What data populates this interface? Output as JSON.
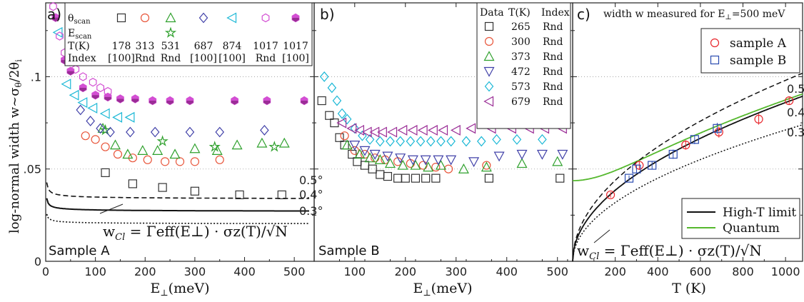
{
  "colors": {
    "c178": "#333333",
    "c313": "#e8553a",
    "c531": "#2ea02c",
    "c687": "#4040a8",
    "c874": "#1cb8d6",
    "c1017": "#d34fd3",
    "c1017f": "#9a2d96",
    "c265": "#333333",
    "c300": "#e8553a",
    "c373": "#2ea02c",
    "c472": "#4040a8",
    "c573": "#1cb8d6",
    "c679": "#9a2d96",
    "sampleA": "#e8242a",
    "sampleB": "#2a4bb0",
    "quantum": "#55b82e",
    "curve": "#111111"
  },
  "shared": {
    "ylabel": "log-normal width w~σθ/2θi",
    "ylabel_main": "log-normal width w~σ",
    "ylabel_sub1": "θ",
    "ylabel_mid": "/2θ",
    "ylabel_sub2": "i"
  },
  "chart_data": [
    {
      "type": "scatter",
      "panel_label": "a)",
      "sample": "Sample A",
      "xlabel": "E⊥(meV)",
      "xlabel_main": "E",
      "xlabel_sub": "⊥",
      "xlabel_unit": "(meV)",
      "xlim": [
        0,
        540
      ],
      "ylim": [
        0,
        0.14
      ],
      "xticks": [
        0,
        100,
        200,
        300,
        400,
        500
      ],
      "yticks": [
        0,
        0.05,
        0.1
      ],
      "ytick_labels": [
        "0",
        ".05",
        ".1"
      ],
      "table": {
        "row_labels": [
          "θscan",
          "Escan",
          "T(K)",
          "Index"
        ],
        "theta": "θ",
        "theta_sub": "scan",
        "e": "E",
        "e_sub": "scan",
        "T_label": "T(K)",
        "index_label": "Index",
        "temps": [
          "178",
          "313",
          "531",
          "687",
          "874",
          "1017",
          "1017"
        ],
        "indices": [
          "[100]",
          "Rnd",
          "Rnd",
          "[100]",
          "[100]",
          "Rnd",
          "[100]"
        ]
      },
      "series": [
        {
          "name": "178 [100]",
          "marker": "square",
          "color_key": "c178",
          "x": [
            120,
            175,
            235,
            300,
            390,
            475
          ],
          "y": [
            0.048,
            0.042,
            0.04,
            0.038,
            0.036,
            0.036
          ]
        },
        {
          "name": "313 Rnd",
          "marker": "circle",
          "color_key": "c313",
          "x": [
            80,
            100,
            120,
            145,
            175,
            205,
            240,
            270,
            300,
            350
          ],
          "y": [
            0.068,
            0.066,
            0.062,
            0.058,
            0.056,
            0.055,
            0.054,
            0.054,
            0.054,
            0.055
          ]
        },
        {
          "name": "531 Rnd θscan",
          "marker": "triangle-up",
          "color_key": "c531",
          "x": [
            115,
            140,
            165,
            195,
            225,
            260,
            300,
            345,
            385,
            435,
            480
          ],
          "y": [
            0.072,
            0.063,
            0.058,
            0.06,
            0.06,
            0.058,
            0.061,
            0.06,
            0.063,
            0.064,
            0.064
          ]
        },
        {
          "name": "531 Rnd Escan",
          "marker": "star",
          "color_key": "c531",
          "x": [
            120,
            235,
            340,
            460
          ],
          "y": [
            0.071,
            0.065,
            0.062,
            0.062
          ]
        },
        {
          "name": "687 [100]",
          "marker": "diamond",
          "color_key": "c687",
          "x": [
            70,
            90,
            110,
            130,
            170,
            220,
            290,
            350,
            440
          ],
          "y": [
            0.082,
            0.076,
            0.072,
            0.07,
            0.07,
            0.07,
            0.07,
            0.07,
            0.071
          ]
        },
        {
          "name": "874 [100]",
          "marker": "triangle-left",
          "color_key": "c874",
          "x": [
            25,
            42,
            58,
            75,
            95,
            120,
            145,
            170
          ],
          "y": [
            0.124,
            0.096,
            0.09,
            0.086,
            0.083,
            0.08,
            0.078,
            0.078
          ]
        },
        {
          "name": "1017 Rnd",
          "marker": "hexagon-open",
          "color_key": "c1017",
          "x": [
            15,
            28,
            38,
            48,
            60,
            75,
            95,
            110,
            125
          ],
          "y": [
            0.138,
            0.122,
            0.113,
            0.108,
            0.104,
            0.1,
            0.097,
            0.094,
            0.092
          ]
        },
        {
          "name": "1017 [100]",
          "marker": "hexagon-half",
          "color_key": "c1017",
          "x": [
            20,
            38,
            50,
            75,
            100,
            125,
            150,
            180,
            215,
            250,
            290,
            380,
            445,
            520
          ],
          "y": [
            0.132,
            0.109,
            0.103,
            0.094,
            0.09,
            0.089,
            0.088,
            0.088,
            0.087,
            0.087,
            0.087,
            0.087,
            0.087,
            0.087
          ]
        }
      ],
      "curves": [
        {
          "name": "0.5°",
          "label": "0.5°",
          "style": "dashed",
          "A": 0.013,
          "C": 0.0335
        },
        {
          "name": "0.4°",
          "label": "0.4°",
          "style": "solid",
          "A": 0.0104,
          "C": 0.0268
        },
        {
          "name": "0.3°",
          "label": "0.3°",
          "style": "dotted",
          "A": 0.0078,
          "C": 0.0201
        }
      ],
      "annotation": {
        "w": "w",
        "sub": "Cl",
        "rest": " = Γeff(E⊥) · σz(T)/√N"
      }
    },
    {
      "type": "scatter",
      "panel_label": "b)",
      "sample": "Sample B",
      "xlabel": "E⊥(meV)",
      "xlabel_main": "E",
      "xlabel_sub": "⊥",
      "xlabel_unit": "(meV)",
      "xlim": [
        20,
        530
      ],
      "ylim": [
        0,
        0.14
      ],
      "xticks": [
        100,
        200,
        300,
        400,
        500
      ],
      "legend_header": [
        "Data",
        "T(K)",
        "Index"
      ],
      "series": [
        {
          "name": "265",
          "index": "Rnd",
          "marker": "square",
          "color_key": "c265",
          "x": [
            35,
            50,
            60,
            70,
            80,
            95,
            105,
            120,
            135,
            150,
            165,
            185,
            200,
            220,
            240,
            260,
            365,
            505
          ],
          "y": [
            0.087,
            0.079,
            0.075,
            0.067,
            0.063,
            0.058,
            0.054,
            0.052,
            0.05,
            0.047,
            0.046,
            0.045,
            0.045,
            0.045,
            0.045,
            0.045,
            0.045,
            0.045
          ]
        },
        {
          "name": "300",
          "index": "Rnd",
          "marker": "circle",
          "color_key": "c300",
          "x": [
            80,
            100,
            120,
            140,
            160,
            185,
            210,
            235,
            260,
            285,
            360
          ],
          "y": [
            0.068,
            0.06,
            0.058,
            0.056,
            0.055,
            0.054,
            0.053,
            0.052,
            0.051,
            0.05,
            0.052
          ]
        },
        {
          "name": "373",
          "index": "Rnd",
          "marker": "triangle-up",
          "color_key": "c373",
          "x": [
            85,
            110,
            130,
            150,
            170,
            195,
            220,
            245,
            270,
            315,
            360,
            430,
            500
          ],
          "y": [
            0.063,
            0.058,
            0.056,
            0.055,
            0.053,
            0.052,
            0.052,
            0.051,
            0.052,
            0.05,
            0.051,
            0.053,
            0.054
          ]
        },
        {
          "name": "472",
          "index": "Rnd",
          "marker": "triangle-down",
          "color_key": "c472",
          "x": [
            100,
            120,
            140,
            165,
            190,
            215,
            240,
            265,
            290,
            335,
            385,
            430,
            470,
            510
          ],
          "y": [
            0.063,
            0.06,
            0.058,
            0.057,
            0.056,
            0.055,
            0.055,
            0.055,
            0.055,
            0.054,
            0.057,
            0.058,
            0.058,
            0.058
          ]
        },
        {
          "name": "573",
          "index": "Rnd",
          "marker": "diamond",
          "color_key": "c573",
          "x": [
            40,
            55,
            65,
            75,
            85,
            100,
            115,
            130,
            150,
            170,
            190,
            210,
            230,
            250,
            270,
            290,
            320,
            350,
            380,
            420,
            470
          ],
          "y": [
            0.1,
            0.094,
            0.087,
            0.08,
            0.077,
            0.072,
            0.068,
            0.066,
            0.065,
            0.065,
            0.065,
            0.065,
            0.065,
            0.065,
            0.065,
            0.065,
            0.065,
            0.065,
            0.066,
            0.066,
            0.066
          ]
        },
        {
          "name": "679",
          "index": "Rnd",
          "marker": "triangle-left",
          "color_key": "c679",
          "x": [
            75,
            95,
            110,
            125,
            140,
            155,
            175,
            195,
            215,
            235,
            255,
            275,
            300,
            330,
            370,
            410,
            445,
            475,
            510
          ],
          "y": [
            0.075,
            0.072,
            0.071,
            0.07,
            0.07,
            0.07,
            0.07,
            0.071,
            0.071,
            0.071,
            0.071,
            0.071,
            0.071,
            0.072,
            0.072,
            0.072,
            0.072,
            0.072,
            0.072
          ]
        }
      ]
    },
    {
      "type": "scatter",
      "panel_label": "c)",
      "title": "width w measured for E⊥=500 meV",
      "title_main": "width w measured for E",
      "title_sub": "⊥",
      "title_rest": "=500 meV",
      "xlabel": "T (K)",
      "xlim": [
        0,
        1080
      ],
      "ylim": [
        0,
        0.14
      ],
      "xticks": [
        200,
        400,
        600,
        800,
        1000
      ],
      "series": [
        {
          "name": "sample A",
          "marker": "circle",
          "color_key": "sampleA",
          "x": [
            178,
            313,
            531,
            687,
            874,
            1017
          ],
          "y": [
            0.036,
            0.052,
            0.063,
            0.07,
            0.077,
            0.087
          ],
          "err": [
            0.0015,
            0.0025,
            0.0025,
            0.003,
            0.003,
            0.002
          ]
        },
        {
          "name": "sample B",
          "marker": "square",
          "color_key": "sampleB",
          "x": [
            265,
            300,
            373,
            472,
            573,
            679
          ],
          "y": [
            0.045,
            0.05,
            0.052,
            0.058,
            0.066,
            0.072
          ],
          "err": [
            0.0015,
            0.002,
            0.002,
            0.0025,
            0.0025,
            0.003
          ]
        }
      ],
      "curves": [
        {
          "name": "High-T limit",
          "style": "solid",
          "color_key": "curve",
          "kind": "classical",
          "k": 0.00272
        },
        {
          "name": "Quantum",
          "style": "solid",
          "color_key": "quantum",
          "kind": "quantum",
          "k": 0.00272,
          "T0": 120
        },
        {
          "name": "0.5°",
          "label": "0.5°",
          "style": "dashed",
          "color_key": "curve",
          "kind": "classical",
          "k": 0.0031
        },
        {
          "name": "0.3°",
          "label": "0.3°",
          "style": "dotted",
          "color_key": "curve",
          "kind": "classical",
          "k": 0.00225
        }
      ],
      "curve_labels": [
        "0.5°",
        "0.4°",
        "0.3°"
      ],
      "annotation": {
        "w": "w",
        "sub": "Cl",
        "rest": " = Γeff(E⊥) · σz(T)/√N"
      }
    }
  ]
}
